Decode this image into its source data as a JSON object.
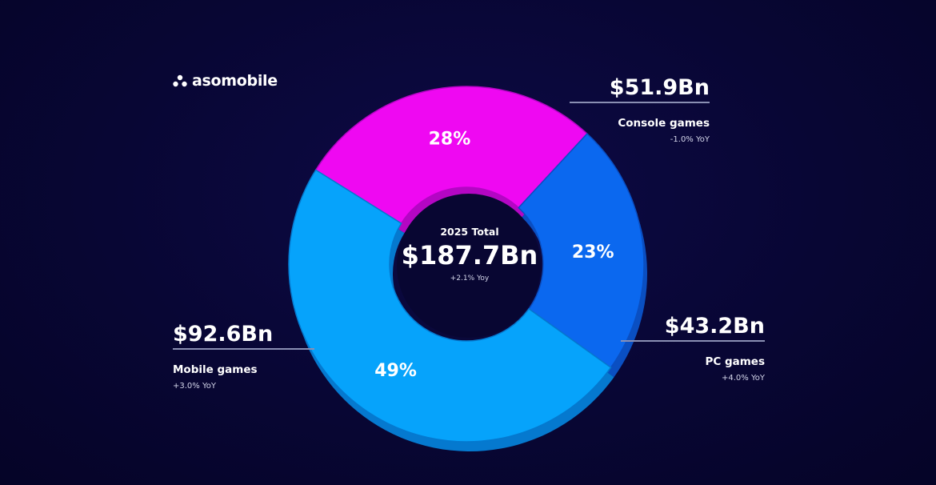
{
  "brand": {
    "name": "asomobile"
  },
  "center": {
    "title": "2025 Total",
    "value": "$187.7Bn",
    "yoy": "+2.1% Yoy"
  },
  "colors": {
    "mobile": "#06a3fb",
    "console": "#ef08f2",
    "pc": "#0b68ef"
  },
  "chart_data": {
    "type": "pie",
    "variant": "donut",
    "title": "",
    "total_label": "2025 Total",
    "total": "$187.7Bn",
    "categories": [
      "Console games",
      "PC games",
      "Mobile games"
    ],
    "values": [
      28,
      23,
      49
    ],
    "value_labels": [
      "28%",
      "23%",
      "49%"
    ],
    "amounts": [
      "$51.9Bn",
      "$43.2Bn",
      "$92.6Bn"
    ],
    "yoy": [
      "-1.0% YoY",
      "+4.0% YoY",
      "+3.0% YoY"
    ]
  },
  "callouts": {
    "console": {
      "value": "$51.9Bn",
      "name": "Console games",
      "yoy": "-1.0% YoY"
    },
    "pc": {
      "value": "$43.2Bn",
      "name": "PC games",
      "yoy": "+4.0% YoY"
    },
    "mobile": {
      "value": "$92.6Bn",
      "name": "Mobile games",
      "yoy": "+3.0% YoY"
    }
  }
}
